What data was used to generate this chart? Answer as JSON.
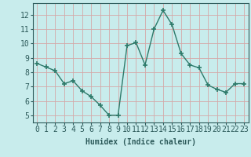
{
  "x": [
    0,
    1,
    2,
    3,
    4,
    5,
    6,
    7,
    8,
    9,
    10,
    11,
    12,
    13,
    14,
    15,
    16,
    17,
    18,
    19,
    20,
    21,
    22,
    23
  ],
  "y": [
    8.6,
    8.35,
    8.1,
    7.2,
    7.4,
    6.7,
    6.3,
    5.7,
    5.0,
    5.0,
    9.85,
    10.05,
    8.5,
    11.0,
    12.3,
    11.3,
    9.3,
    8.5,
    8.3,
    7.1,
    6.8,
    6.6,
    7.2,
    7.2
  ],
  "line_color": "#2d7a6a",
  "marker": "+",
  "marker_size": 4,
  "bg_color": "#c8ecec",
  "grid_color": "#b0d8d8",
  "xlabel": "Humidex (Indice chaleur)",
  "ylabel_ticks": [
    5,
    6,
    7,
    8,
    9,
    10,
    11,
    12
  ],
  "ylim": [
    4.5,
    12.8
  ],
  "xlim": [
    -0.5,
    23.5
  ],
  "xlabel_fontsize": 7,
  "tick_fontsize": 7,
  "linewidth": 1.0
}
